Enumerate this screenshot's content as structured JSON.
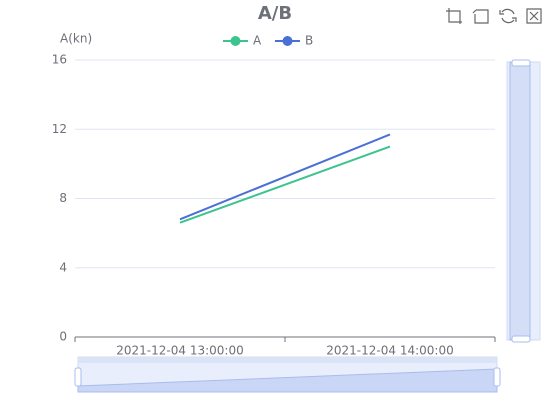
{
  "chart_data": {
    "type": "line",
    "title": "A/B",
    "y_label": "A(kn)",
    "categories": [
      "2021-12-04 13:00:00",
      "2021-12-04 14:00:00"
    ],
    "series": [
      {
        "name": "A",
        "color": "#3bc48d",
        "values": [
          6.6,
          11.0
        ]
      },
      {
        "name": "B",
        "color": "#4a6fd6",
        "values": [
          6.8,
          11.7
        ]
      }
    ],
    "ylim": [
      0,
      16
    ],
    "yticks": [
      0,
      4,
      8,
      12,
      16
    ],
    "grid": true,
    "legend": "top"
  }
}
